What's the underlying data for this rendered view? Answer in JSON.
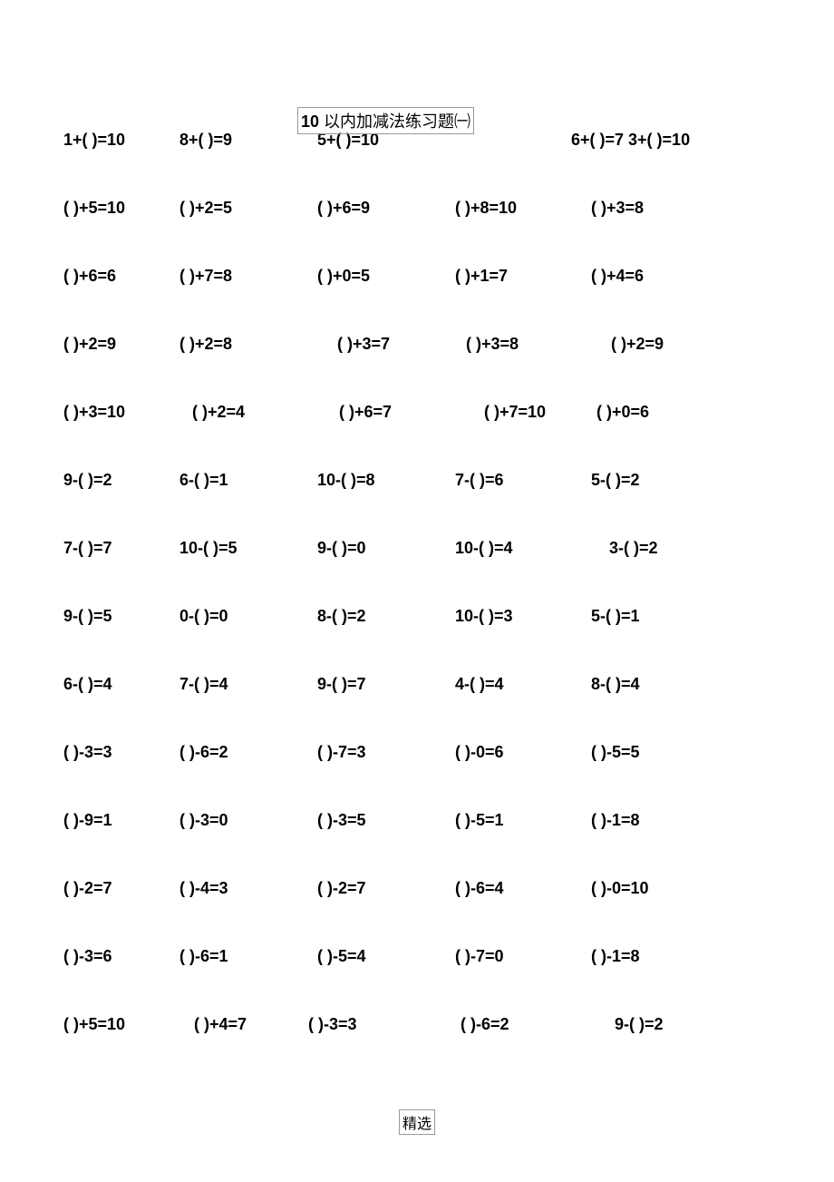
{
  "title": {
    "bold_prefix": "10",
    "rest": " 以内加减法练习题㈠"
  },
  "footer": "精选",
  "rows": [
    [
      "1+(  )=10",
      "8+(  )=9",
      "5+(  )=10",
      "",
      "6+(  )=7 3+(  )=10"
    ],
    [
      "(  )+5=10",
      "(  )+2=5",
      "(  )+6=9",
      "(  )+8=10",
      "(  )+3=8"
    ],
    [
      "(  )+6=6",
      "(  )+7=8",
      "(  )+0=5",
      "(  )+1=7",
      "(  )+4=6"
    ],
    [
      "(  )+2=9",
      "(  )+2=8",
      "(  )+3=7",
      "(  )+3=8",
      "(  )+2=9"
    ],
    [
      "(  )+3=10",
      "(  )+2=4",
      "(  )+6=7",
      "(  )+7=10",
      "(  )+0=6"
    ],
    [
      "9-(  )=2",
      "6-(  )=1",
      "10-(  )=8",
      "7-(  )=6",
      "5-(  )=2"
    ],
    [
      "7-(  )=7",
      "10-(  )=5",
      "9-(  )=0",
      "10-(  )=4",
      "3-(  )=2"
    ],
    [
      "9-(  )=5",
      "0-(  )=0",
      "8-(  )=2",
      "10-(  )=3",
      "5-(  )=1"
    ],
    [
      "6-(  )=4",
      "7-(  )=4",
      "9-(  )=7",
      "4-(  )=4",
      "8-(  )=4"
    ],
    [
      "(  )-3=3",
      "(  )-6=2",
      "(  )-7=3",
      "(  )-0=6",
      "(  )-5=5"
    ],
    [
      "(  )-9=1",
      "(  )-3=0",
      "(  )-3=5",
      "(  )-5=1",
      "(  )-1=8"
    ],
    [
      "(  )-2=7",
      "(  )-4=3",
      "(  )-2=7",
      "(  )-6=4",
      "(  )-0=10"
    ],
    [
      "(  )-3=6",
      "(  )-6=1",
      "(  )-5=4",
      "(  )-7=0",
      "(  )-1=8"
    ],
    [
      "(  )+5=10",
      "(  )+4=7",
      "(  )-3=3",
      "(  )-6=2",
      "9-(  )=2"
    ]
  ]
}
